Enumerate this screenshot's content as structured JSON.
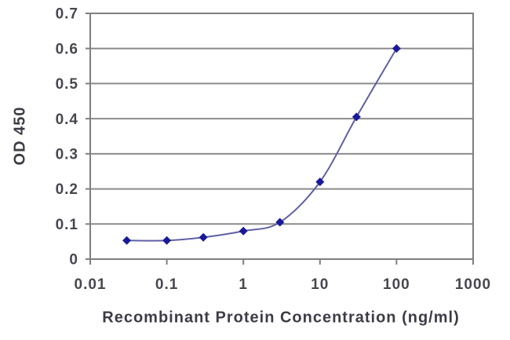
{
  "chart_data": {
    "type": "line",
    "subtype": "scatter-with-smooth-line",
    "title": "",
    "xlabel": "Recombinant Protein Concentration (ng/ml)",
    "ylabel": "OD 450",
    "x_scale": "log",
    "xlim": [
      0.01,
      1000
    ],
    "ylim": [
      0,
      0.7
    ],
    "x": [
      0.03,
      0.1,
      0.3,
      1,
      3,
      10,
      30,
      100
    ],
    "y": [
      0.053,
      0.053,
      0.062,
      0.08,
      0.105,
      0.22,
      0.405,
      0.6
    ],
    "x_ticks": [
      0.01,
      0.1,
      1,
      10,
      100,
      1000
    ],
    "x_tick_labels": [
      "0.01",
      "0.1",
      "1",
      "10",
      "100",
      "1000"
    ],
    "y_ticks": [
      0,
      0.1,
      0.2,
      0.3,
      0.4,
      0.5,
      0.6,
      0.7
    ],
    "y_tick_labels": [
      "0",
      "0.1",
      "0.2",
      "0.3",
      "0.4",
      "0.5",
      "0.6",
      "0.7"
    ],
    "grid": "horizontal",
    "legend": "none",
    "marker": "diamond",
    "colors": {
      "line": "#5f5fa7",
      "marker": "#1a1a99",
      "grid": "#8c8c8c",
      "frame": "#7f7f7f",
      "tick_text": "#47474f",
      "axis_title_text": "#3c3c46",
      "background": "#ffffff"
    }
  }
}
